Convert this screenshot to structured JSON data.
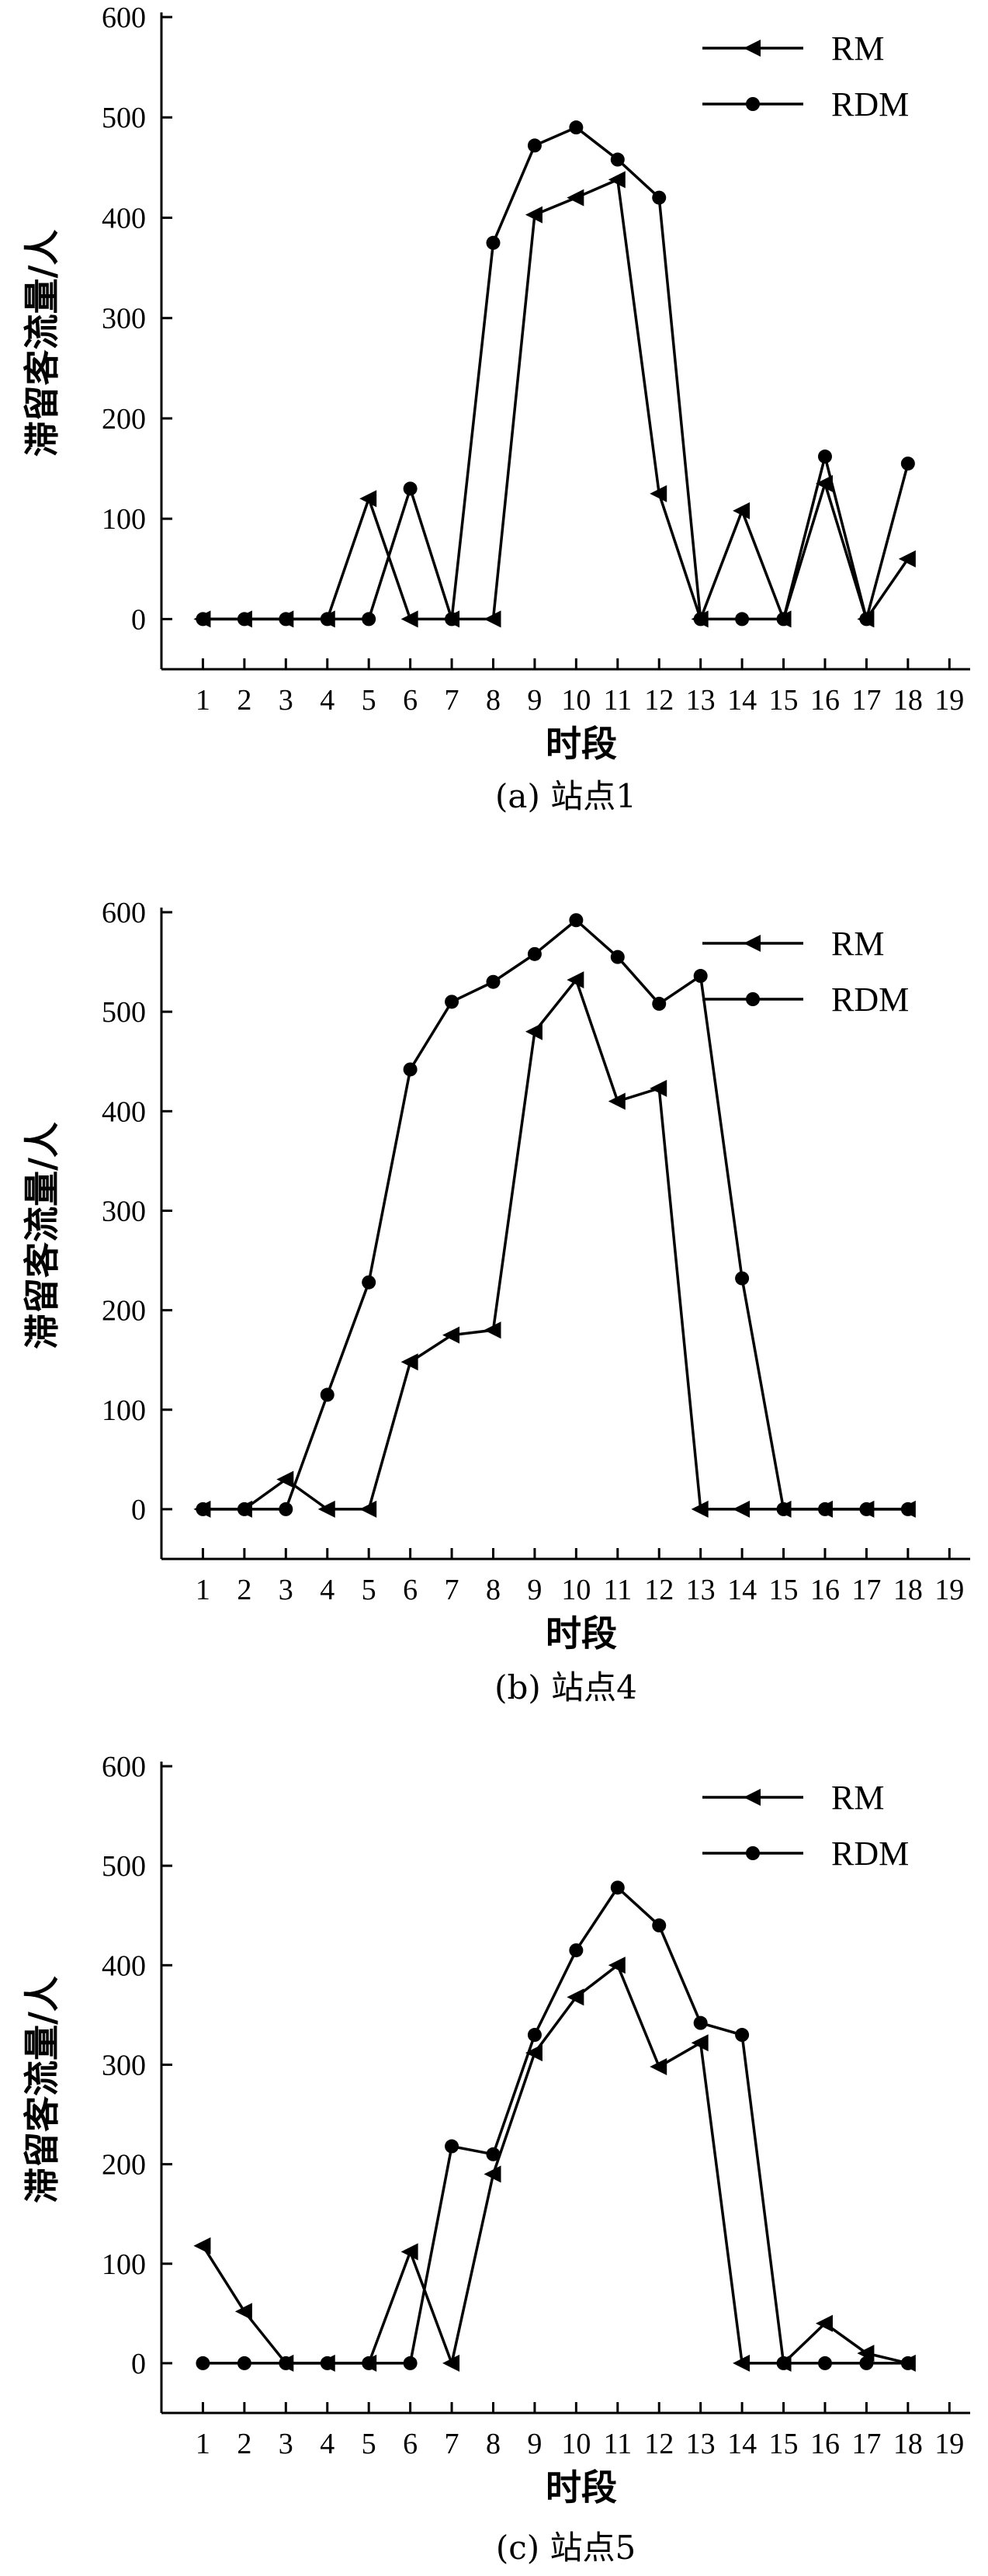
{
  "chart_data": [
    {
      "type": "line",
      "caption": "(a) 站点1",
      "xlabel": "时段",
      "ylabel": "滞留客流量/人",
      "x_ticks": [
        1,
        2,
        3,
        4,
        5,
        6,
        7,
        8,
        9,
        10,
        11,
        12,
        13,
        14,
        15,
        16,
        17,
        18,
        19
      ],
      "y_ticks": [
        0,
        100,
        200,
        300,
        400,
        500,
        600
      ],
      "xlim": [
        0,
        19.5
      ],
      "ylim": [
        -50,
        600
      ],
      "legend_position": "top-right",
      "series": [
        {
          "name": "RM",
          "marker": "left-triangle",
          "x": [
            1,
            2,
            3,
            4,
            5,
            6,
            7,
            8,
            9,
            10,
            11,
            12,
            13,
            14,
            15,
            16,
            17,
            18
          ],
          "y": [
            0,
            0,
            0,
            0,
            120,
            0,
            0,
            0,
            403,
            420,
            438,
            125,
            0,
            108,
            0,
            135,
            0,
            60
          ]
        },
        {
          "name": "RDM",
          "marker": "circle",
          "x": [
            1,
            2,
            3,
            4,
            5,
            6,
            7,
            8,
            9,
            10,
            11,
            12,
            13,
            14,
            15,
            16,
            17,
            18
          ],
          "y": [
            0,
            0,
            0,
            0,
            0,
            130,
            0,
            375,
            472,
            490,
            458,
            420,
            0,
            0,
            0,
            162,
            0,
            155
          ]
        }
      ]
    },
    {
      "type": "line",
      "caption": "(b) 站点4",
      "xlabel": "时段",
      "ylabel": "滞留客流量/人",
      "x_ticks": [
        1,
        2,
        3,
        4,
        5,
        6,
        7,
        8,
        9,
        10,
        11,
        12,
        13,
        14,
        15,
        16,
        17,
        18,
        19
      ],
      "y_ticks": [
        0,
        100,
        200,
        300,
        400,
        500,
        600
      ],
      "xlim": [
        0,
        19.5
      ],
      "ylim": [
        -50,
        600
      ],
      "legend_position": "top-right",
      "series": [
        {
          "name": "RM",
          "marker": "left-triangle",
          "x": [
            1,
            2,
            3,
            4,
            5,
            6,
            7,
            8,
            9,
            10,
            11,
            12,
            13,
            14,
            15,
            16,
            17,
            18
          ],
          "y": [
            0,
            0,
            30,
            0,
            0,
            148,
            175,
            180,
            480,
            532,
            410,
            423,
            0,
            0,
            0,
            0,
            0,
            0
          ]
        },
        {
          "name": "RDM",
          "marker": "circle",
          "x": [
            1,
            2,
            3,
            4,
            5,
            6,
            7,
            8,
            9,
            10,
            11,
            12,
            13,
            14,
            15,
            16,
            17,
            18
          ],
          "y": [
            0,
            0,
            0,
            115,
            228,
            442,
            510,
            530,
            558,
            592,
            555,
            508,
            536,
            232,
            0,
            0,
            0,
            0
          ]
        }
      ]
    },
    {
      "type": "line",
      "caption": "(c) 站点5",
      "xlabel": "时段",
      "ylabel": "滞留客流量/人",
      "x_ticks": [
        1,
        2,
        3,
        4,
        5,
        6,
        7,
        8,
        9,
        10,
        11,
        12,
        13,
        14,
        15,
        16,
        17,
        18,
        19
      ],
      "y_ticks": [
        0,
        100,
        200,
        300,
        400,
        500,
        600
      ],
      "xlim": [
        0,
        19.5
      ],
      "ylim": [
        -50,
        600
      ],
      "legend_position": "top-right",
      "series": [
        {
          "name": "RM",
          "marker": "left-triangle",
          "x": [
            1,
            2,
            3,
            4,
            5,
            6,
            7,
            8,
            9,
            10,
            11,
            12,
            13,
            14,
            15,
            16,
            17,
            18
          ],
          "y": [
            118,
            52,
            0,
            0,
            0,
            112,
            0,
            190,
            312,
            368,
            400,
            298,
            322,
            0,
            0,
            40,
            10,
            0
          ]
        },
        {
          "name": "RDM",
          "marker": "circle",
          "x": [
            1,
            2,
            3,
            4,
            5,
            6,
            7,
            8,
            9,
            10,
            11,
            12,
            13,
            14,
            15,
            16,
            17,
            18
          ],
          "y": [
            0,
            0,
            0,
            0,
            0,
            0,
            218,
            210,
            330,
            415,
            478,
            440,
            342,
            330,
            0,
            0,
            0,
            0
          ]
        }
      ]
    }
  ]
}
